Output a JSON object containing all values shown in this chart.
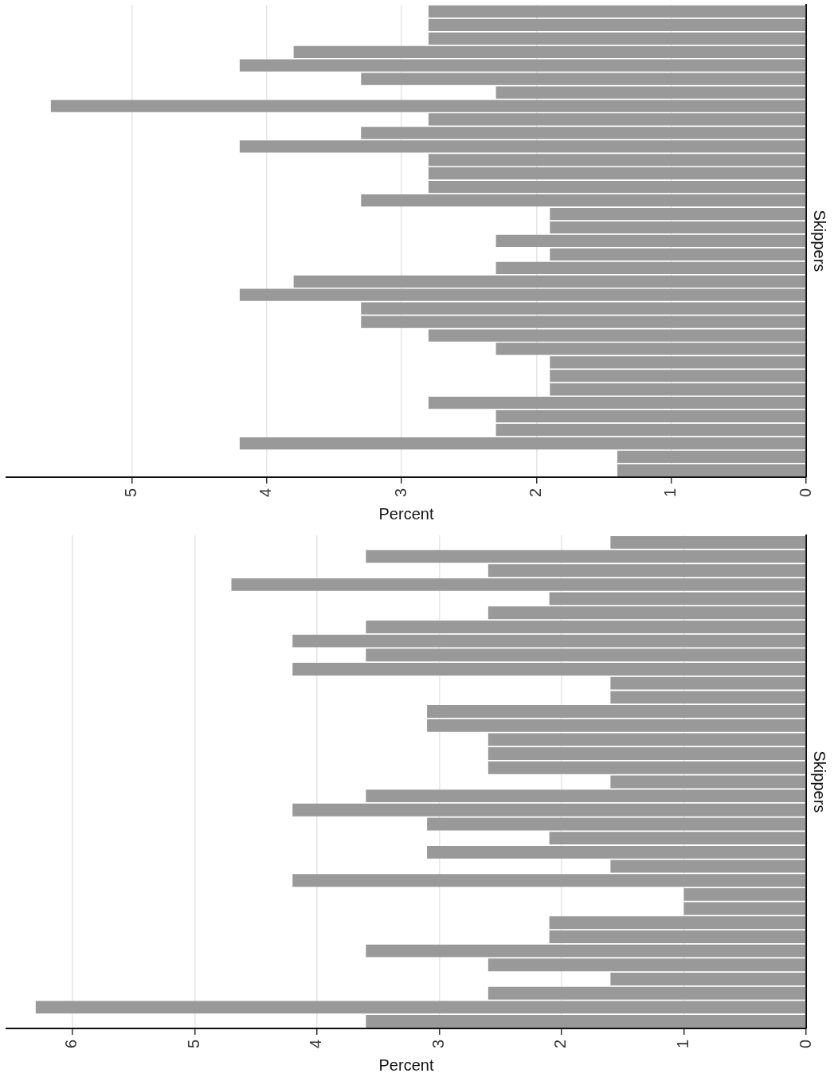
{
  "chart_data": [
    {
      "type": "bar",
      "orientation": "horizontal",
      "xlabel": "Percent",
      "ylabel": "Skippers",
      "categories": [
        null,
        null,
        null,
        null,
        null,
        null,
        null,
        null,
        null,
        null,
        null,
        null,
        null,
        null,
        null,
        null,
        null,
        null,
        null,
        null,
        null,
        null,
        null,
        null,
        null,
        null,
        null,
        null,
        null,
        null,
        null,
        null,
        null,
        null,
        null
      ],
      "values": [
        2.8,
        2.8,
        2.8,
        3.8,
        4.2,
        3.3,
        2.3,
        5.6,
        2.8,
        3.3,
        4.2,
        2.8,
        2.8,
        2.8,
        3.3,
        1.9,
        1.9,
        2.3,
        1.9,
        2.3,
        3.8,
        4.2,
        3.3,
        3.3,
        2.8,
        2.3,
        1.9,
        1.9,
        1.9,
        2.8,
        2.3,
        2.3,
        4.2,
        1.4,
        1.4
      ],
      "color": "#999999",
      "xlim": [
        5.93,
        0
      ],
      "xticks": [
        0,
        1,
        2,
        3,
        4,
        5
      ],
      "grid": "x",
      "legend": false
    },
    {
      "type": "bar",
      "orientation": "horizontal",
      "xlabel": "Percent",
      "ylabel": "Skippers",
      "categories": [
        null,
        null,
        null,
        null,
        null,
        null,
        null,
        null,
        null,
        null,
        null,
        null,
        null,
        null,
        null,
        null,
        null,
        null,
        null,
        null,
        null,
        null,
        null,
        null,
        null,
        null,
        null,
        null,
        null,
        null,
        null,
        null,
        null,
        null,
        null
      ],
      "values": [
        1.6,
        3.6,
        2.6,
        4.7,
        2.1,
        2.6,
        3.6,
        4.2,
        3.6,
        4.2,
        1.6,
        1.6,
        3.1,
        3.1,
        2.6,
        2.6,
        2.6,
        1.6,
        3.6,
        4.2,
        3.1,
        2.1,
        3.1,
        1.6,
        4.2,
        1.0,
        1.0,
        2.1,
        2.1,
        3.6,
        2.6,
        1.6,
        2.6,
        6.3,
        3.6
      ],
      "color": "#999999",
      "xlim": [
        6.54,
        0
      ],
      "xticks": [
        0,
        1,
        2,
        3,
        4,
        5,
        6
      ],
      "grid": "x",
      "legend": false
    }
  ]
}
